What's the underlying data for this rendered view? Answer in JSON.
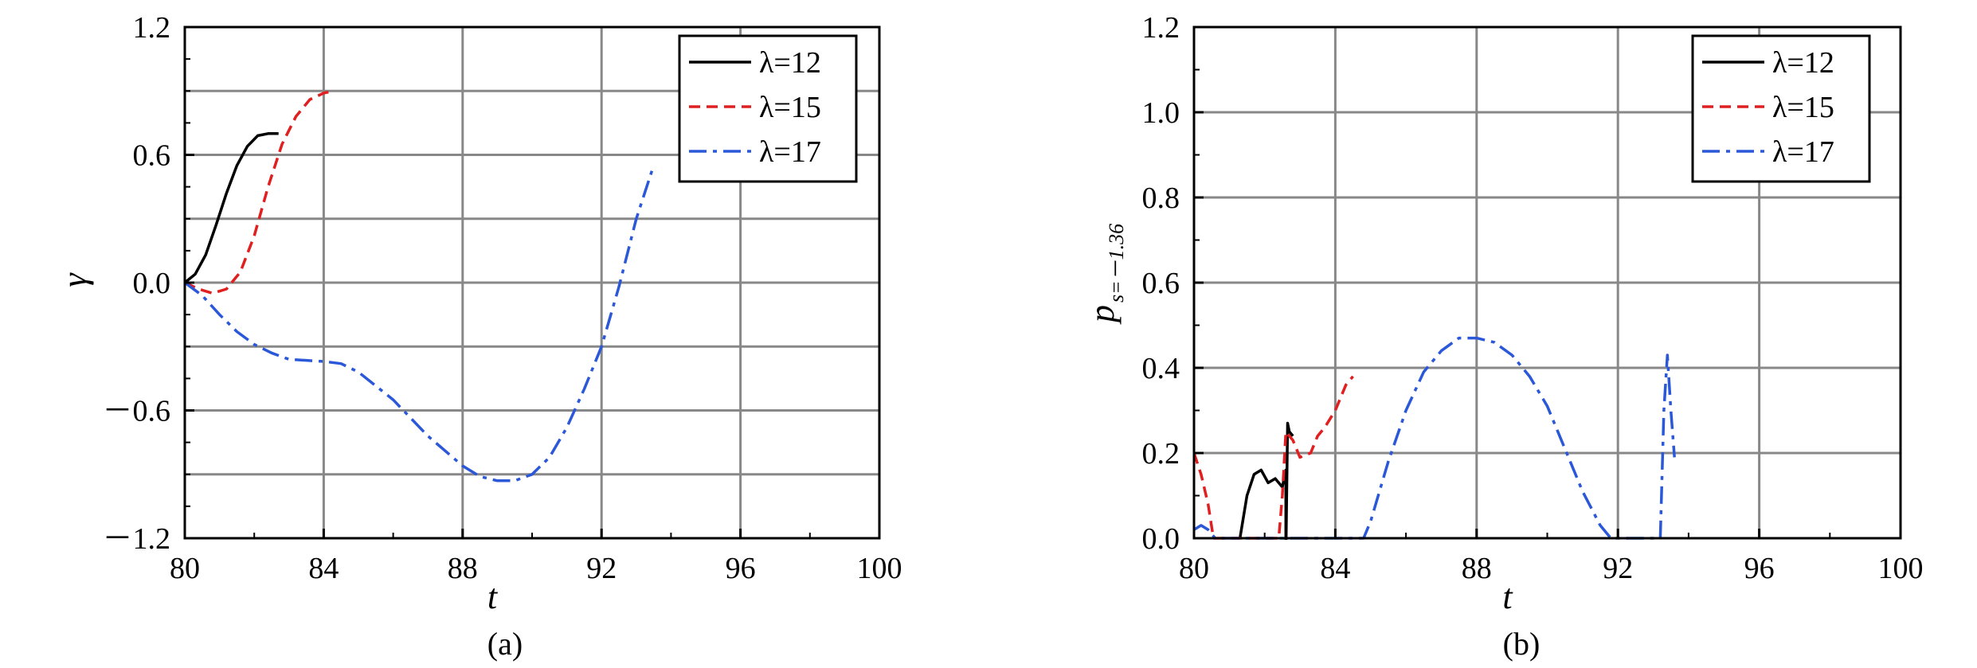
{
  "chart_data": [
    {
      "type": "line",
      "panel_label": "(a)",
      "xlabel": "t",
      "ylabel": "γ",
      "xlim": [
        80,
        100
      ],
      "ylim": [
        -1.2,
        1.2
      ],
      "x_ticks": [
        80,
        84,
        88,
        92,
        96,
        100
      ],
      "x_tick_labels": [
        "80",
        "84",
        "88",
        "92",
        "96",
        "100"
      ],
      "y_ticks": [
        1.2,
        0.6,
        0.0,
        -0.6,
        -1.2
      ],
      "y_tick_labels": [
        "1.2",
        "0.6",
        "0.0",
        "－0.6",
        "－1.2"
      ],
      "grid": true,
      "legend_position": "top-right",
      "series": [
        {
          "name": "λ=12",
          "color": "#000000",
          "style": "solid",
          "x": [
            80.0,
            80.3,
            80.6,
            80.9,
            81.2,
            81.5,
            81.8,
            82.1,
            82.4,
            82.7
          ],
          "y": [
            0.0,
            0.04,
            0.13,
            0.27,
            0.42,
            0.55,
            0.64,
            0.69,
            0.7,
            0.7
          ]
        },
        {
          "name": "λ=15",
          "color": "#e02020",
          "style": "dash",
          "x": [
            80.0,
            80.4,
            80.8,
            81.2,
            81.6,
            82.0,
            82.4,
            82.8,
            83.2,
            83.6,
            84.0,
            84.3
          ],
          "y": [
            0.0,
            -0.03,
            -0.05,
            -0.03,
            0.05,
            0.22,
            0.45,
            0.65,
            0.78,
            0.86,
            0.89,
            0.9
          ]
        },
        {
          "name": "λ=17",
          "color": "#2b58d8",
          "style": "dashdot",
          "x": [
            80.0,
            80.5,
            81.0,
            81.5,
            82.0,
            82.5,
            83.0,
            84.0,
            84.5,
            85.0,
            86.0,
            87.0,
            88.0,
            88.5,
            89.0,
            89.5,
            90.0,
            90.5,
            91.0,
            91.5,
            92.0,
            92.5,
            93.0,
            93.5
          ],
          "y": [
            0.0,
            -0.06,
            -0.15,
            -0.23,
            -0.29,
            -0.33,
            -0.36,
            -0.37,
            -0.38,
            -0.42,
            -0.55,
            -0.72,
            -0.86,
            -0.91,
            -0.93,
            -0.93,
            -0.9,
            -0.82,
            -0.68,
            -0.5,
            -0.3,
            -0.02,
            0.3,
            0.55
          ]
        }
      ]
    },
    {
      "type": "line",
      "panel_label": "(b)",
      "xlabel": "t",
      "ylabel": "p",
      "ylabel_subscript": "s=－1.36",
      "xlim": [
        80,
        100
      ],
      "ylim": [
        0.0,
        1.2
      ],
      "x_ticks": [
        80,
        84,
        88,
        92,
        96,
        100
      ],
      "x_tick_labels": [
        "80",
        "84",
        "88",
        "92",
        "96",
        "100"
      ],
      "y_ticks": [
        1.2,
        1.0,
        0.8,
        0.6,
        0.4,
        0.2,
        0.0
      ],
      "y_tick_labels": [
        "1.2",
        "1.0",
        "0.8",
        "0.6",
        "0.4",
        "0.2",
        "0.0"
      ],
      "grid": true,
      "legend_position": "top-right",
      "series": [
        {
          "name": "λ=12",
          "color": "#000000",
          "style": "solid",
          "x": [
            81.3,
            81.5,
            81.7,
            81.9,
            82.1,
            82.3,
            82.5,
            82.6,
            82.6,
            82.65,
            82.7,
            82.8
          ],
          "y": [
            0.0,
            0.1,
            0.15,
            0.16,
            0.13,
            0.14,
            0.12,
            0.16,
            -0.05,
            0.27,
            0.25,
            0.24
          ]
        },
        {
          "name": "λ=15",
          "color": "#e02020",
          "style": "dash",
          "x": [
            80.0,
            80.2,
            80.4,
            80.55,
            80.6,
            82.4,
            82.5,
            82.6,
            82.8,
            83.0,
            83.3,
            83.5,
            83.7,
            84.0,
            84.3,
            84.5
          ],
          "y": [
            0.2,
            0.15,
            0.08,
            0.0,
            0.0,
            0.0,
            0.1,
            0.25,
            0.23,
            0.19,
            0.2,
            0.24,
            0.26,
            0.3,
            0.36,
            0.38
          ]
        },
        {
          "name": "λ=17",
          "color": "#2b58d8",
          "style": "dashdot",
          "x": [
            80.0,
            80.2,
            80.4,
            80.6,
            84.8,
            85.0,
            85.5,
            86.0,
            86.5,
            87.0,
            87.5,
            88.0,
            88.5,
            89.0,
            89.5,
            90.0,
            90.5,
            91.0,
            91.5,
            91.8,
            93.2,
            93.3,
            93.4,
            93.5,
            93.6
          ],
          "y": [
            0.02,
            0.03,
            0.02,
            0.0,
            0.0,
            0.04,
            0.18,
            0.3,
            0.39,
            0.44,
            0.47,
            0.47,
            0.46,
            0.43,
            0.38,
            0.31,
            0.21,
            0.11,
            0.03,
            0.0,
            0.0,
            0.3,
            0.43,
            0.3,
            0.19
          ]
        }
      ]
    }
  ]
}
